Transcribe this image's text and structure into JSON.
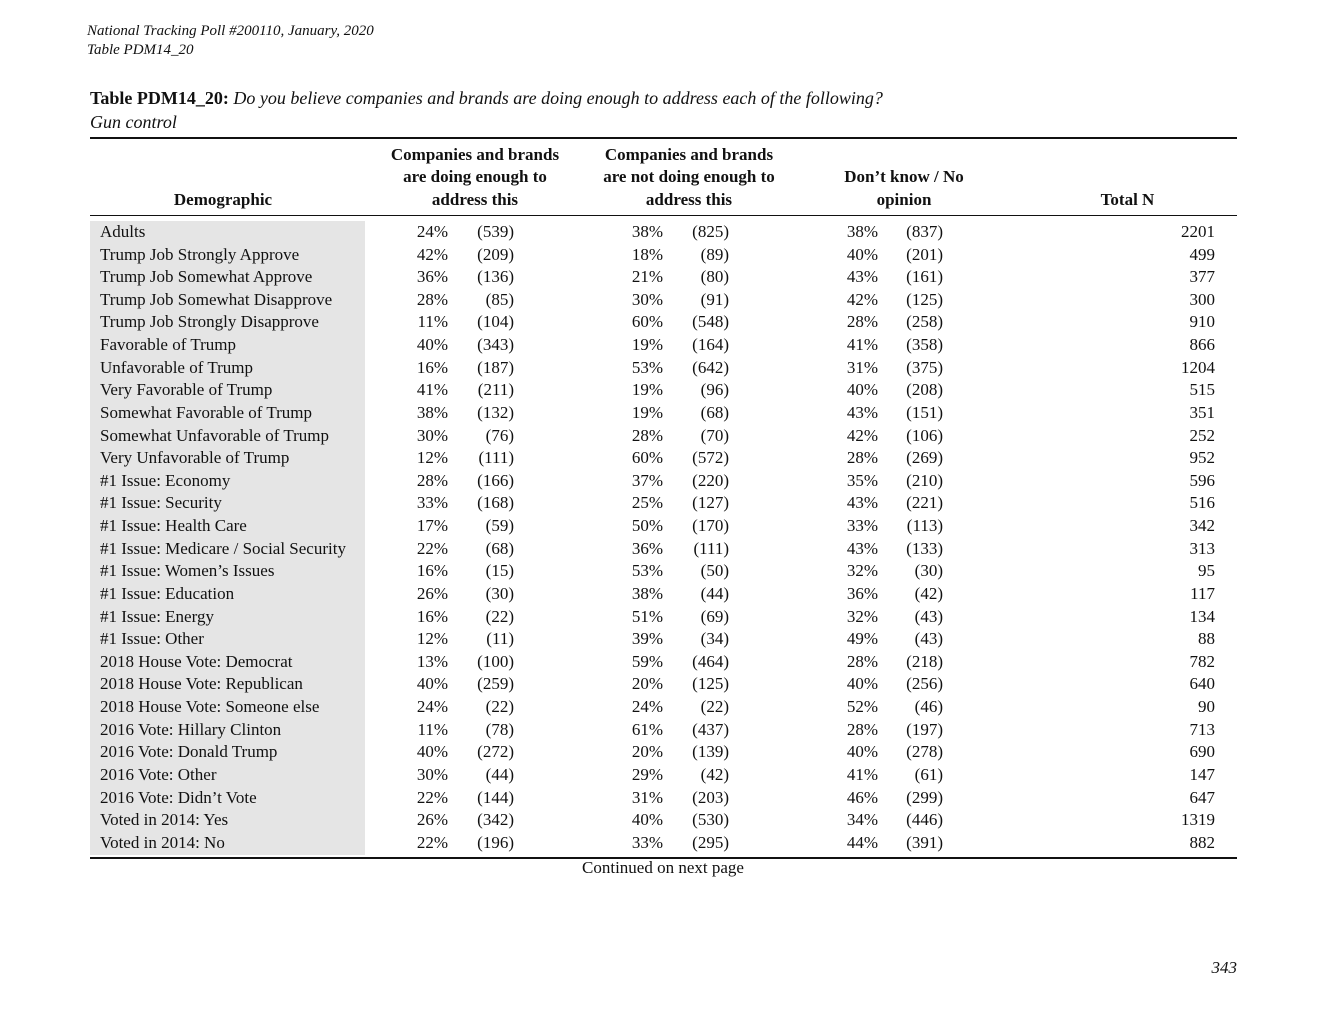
{
  "header": {
    "line1": "National Tracking Poll #200110, January, 2020",
    "line2": "Table PDM14_20"
  },
  "table": {
    "label": "Table PDM14_20:",
    "question": "Do you believe companies and brands are doing enough to address each of the following?",
    "subtitle": "Gun control",
    "columns": [
      "Demographic",
      "Companies and brands are doing enough to address this",
      "Companies and brands are not doing enough to address this",
      "Don’t know / No opinion",
      "Total N"
    ],
    "rows": [
      {
        "label": "Adults",
        "values": [
          "24%",
          "(539)",
          "38%",
          "(825)",
          "38%",
          "(837)",
          "2201"
        ]
      },
      {
        "label": "Trump Job Strongly Approve",
        "values": [
          "42%",
          "(209)",
          "18%",
          "(89)",
          "40%",
          "(201)",
          "499"
        ]
      },
      {
        "label": "Trump Job Somewhat Approve",
        "values": [
          "36%",
          "(136)",
          "21%",
          "(80)",
          "43%",
          "(161)",
          "377"
        ]
      },
      {
        "label": "Trump Job Somewhat Disapprove",
        "values": [
          "28%",
          "(85)",
          "30%",
          "(91)",
          "42%",
          "(125)",
          "300"
        ]
      },
      {
        "label": "Trump Job Strongly Disapprove",
        "values": [
          "11%",
          "(104)",
          "60%",
          "(548)",
          "28%",
          "(258)",
          "910"
        ]
      },
      {
        "label": "Favorable of Trump",
        "values": [
          "40%",
          "(343)",
          "19%",
          "(164)",
          "41%",
          "(358)",
          "866"
        ]
      },
      {
        "label": "Unfavorable of Trump",
        "values": [
          "16%",
          "(187)",
          "53%",
          "(642)",
          "31%",
          "(375)",
          "1204"
        ]
      },
      {
        "label": "Very Favorable of Trump",
        "values": [
          "41%",
          "(211)",
          "19%",
          "(96)",
          "40%",
          "(208)",
          "515"
        ]
      },
      {
        "label": "Somewhat Favorable of Trump",
        "values": [
          "38%",
          "(132)",
          "19%",
          "(68)",
          "43%",
          "(151)",
          "351"
        ]
      },
      {
        "label": "Somewhat Unfavorable of Trump",
        "values": [
          "30%",
          "(76)",
          "28%",
          "(70)",
          "42%",
          "(106)",
          "252"
        ]
      },
      {
        "label": "Very Unfavorable of Trump",
        "values": [
          "12%",
          "(111)",
          "60%",
          "(572)",
          "28%",
          "(269)",
          "952"
        ]
      },
      {
        "label": "#1 Issue: Economy",
        "values": [
          "28%",
          "(166)",
          "37%",
          "(220)",
          "35%",
          "(210)",
          "596"
        ]
      },
      {
        "label": "#1 Issue: Security",
        "values": [
          "33%",
          "(168)",
          "25%",
          "(127)",
          "43%",
          "(221)",
          "516"
        ]
      },
      {
        "label": "#1 Issue: Health Care",
        "values": [
          "17%",
          "(59)",
          "50%",
          "(170)",
          "33%",
          "(113)",
          "342"
        ]
      },
      {
        "label": "#1 Issue: Medicare / Social Security",
        "values": [
          "22%",
          "(68)",
          "36%",
          "(111)",
          "43%",
          "(133)",
          "313"
        ]
      },
      {
        "label": "#1 Issue: Women’s Issues",
        "values": [
          "16%",
          "(15)",
          "53%",
          "(50)",
          "32%",
          "(30)",
          "95"
        ]
      },
      {
        "label": "#1 Issue: Education",
        "values": [
          "26%",
          "(30)",
          "38%",
          "(44)",
          "36%",
          "(42)",
          "117"
        ]
      },
      {
        "label": "#1 Issue: Energy",
        "values": [
          "16%",
          "(22)",
          "51%",
          "(69)",
          "32%",
          "(43)",
          "134"
        ]
      },
      {
        "label": "#1 Issue: Other",
        "values": [
          "12%",
          "(11)",
          "39%",
          "(34)",
          "49%",
          "(43)",
          "88"
        ]
      },
      {
        "label": "2018 House Vote: Democrat",
        "values": [
          "13%",
          "(100)",
          "59%",
          "(464)",
          "28%",
          "(218)",
          "782"
        ]
      },
      {
        "label": "2018 House Vote: Republican",
        "values": [
          "40%",
          "(259)",
          "20%",
          "(125)",
          "40%",
          "(256)",
          "640"
        ]
      },
      {
        "label": "2018 House Vote: Someone else",
        "values": [
          "24%",
          "(22)",
          "24%",
          "(22)",
          "52%",
          "(46)",
          "90"
        ]
      },
      {
        "label": "2016 Vote: Hillary Clinton",
        "values": [
          "11%",
          "(78)",
          "61%",
          "(437)",
          "28%",
          "(197)",
          "713"
        ]
      },
      {
        "label": "2016 Vote: Donald Trump",
        "values": [
          "40%",
          "(272)",
          "20%",
          "(139)",
          "40%",
          "(278)",
          "690"
        ]
      },
      {
        "label": "2016 Vote: Other",
        "values": [
          "30%",
          "(44)",
          "29%",
          "(42)",
          "41%",
          "(61)",
          "147"
        ]
      },
      {
        "label": "2016 Vote: Didn’t Vote",
        "values": [
          "22%",
          "(144)",
          "31%",
          "(203)",
          "46%",
          "(299)",
          "647"
        ]
      },
      {
        "label": "Voted in 2014: Yes",
        "values": [
          "26%",
          "(342)",
          "40%",
          "(530)",
          "34%",
          "(446)",
          "1319"
        ]
      },
      {
        "label": "Voted in 2014: No",
        "values": [
          "22%",
          "(196)",
          "33%",
          "(295)",
          "44%",
          "(391)",
          "882"
        ]
      }
    ],
    "footer": "Continued on next page"
  },
  "page_number": "343"
}
